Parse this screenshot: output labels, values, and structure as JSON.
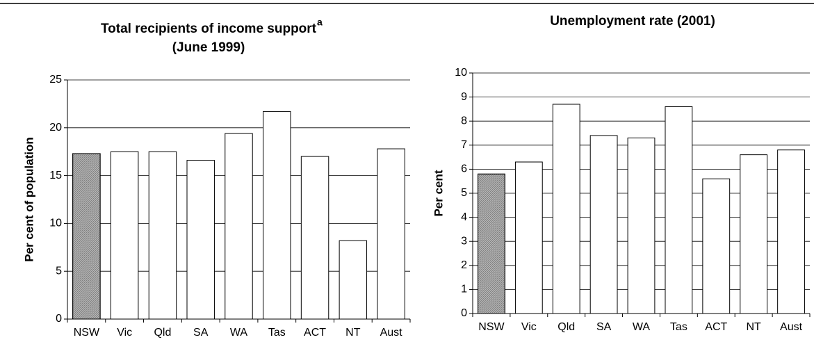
{
  "chart_data": [
    {
      "type": "bar",
      "title": "Total recipients of income support",
      "title_superscript": "a",
      "subtitle": "(June 1999)",
      "y_label": "Per cent of population",
      "categories": [
        "NSW",
        "Vic",
        "Qld",
        "SA",
        "WA",
        "Tas",
        "ACT",
        "NT",
        "Aust"
      ],
      "values": [
        17.3,
        17.5,
        17.5,
        16.6,
        19.4,
        21.7,
        17.0,
        8.2,
        17.8
      ],
      "colors": [
        "#b4b4b4",
        "#ffffff",
        "#ffffff",
        "#ffffff",
        "#ffffff",
        "#ffffff",
        "#ffffff",
        "#ffffff",
        "#ffffff"
      ],
      "ylim": [
        0,
        25
      ],
      "yticks": [
        0,
        5,
        10,
        15,
        20,
        25
      ],
      "grid": true
    },
    {
      "type": "bar",
      "title": "Unemployment rate (2001)",
      "y_label": "Per cent",
      "categories": [
        "NSW",
        "Vic",
        "Qld",
        "SA",
        "WA",
        "Tas",
        "ACT",
        "NT",
        "Aust"
      ],
      "values": [
        5.8,
        6.3,
        8.7,
        7.4,
        7.3,
        8.6,
        5.6,
        6.6,
        6.8
      ],
      "colors": [
        "#b4b4b4",
        "#ffffff",
        "#ffffff",
        "#ffffff",
        "#ffffff",
        "#ffffff",
        "#ffffff",
        "#ffffff",
        "#ffffff"
      ],
      "ylim": [
        0,
        10
      ],
      "yticks": [
        0,
        1,
        2,
        3,
        4,
        5,
        6,
        7,
        8,
        9,
        10
      ],
      "grid": true
    }
  ]
}
